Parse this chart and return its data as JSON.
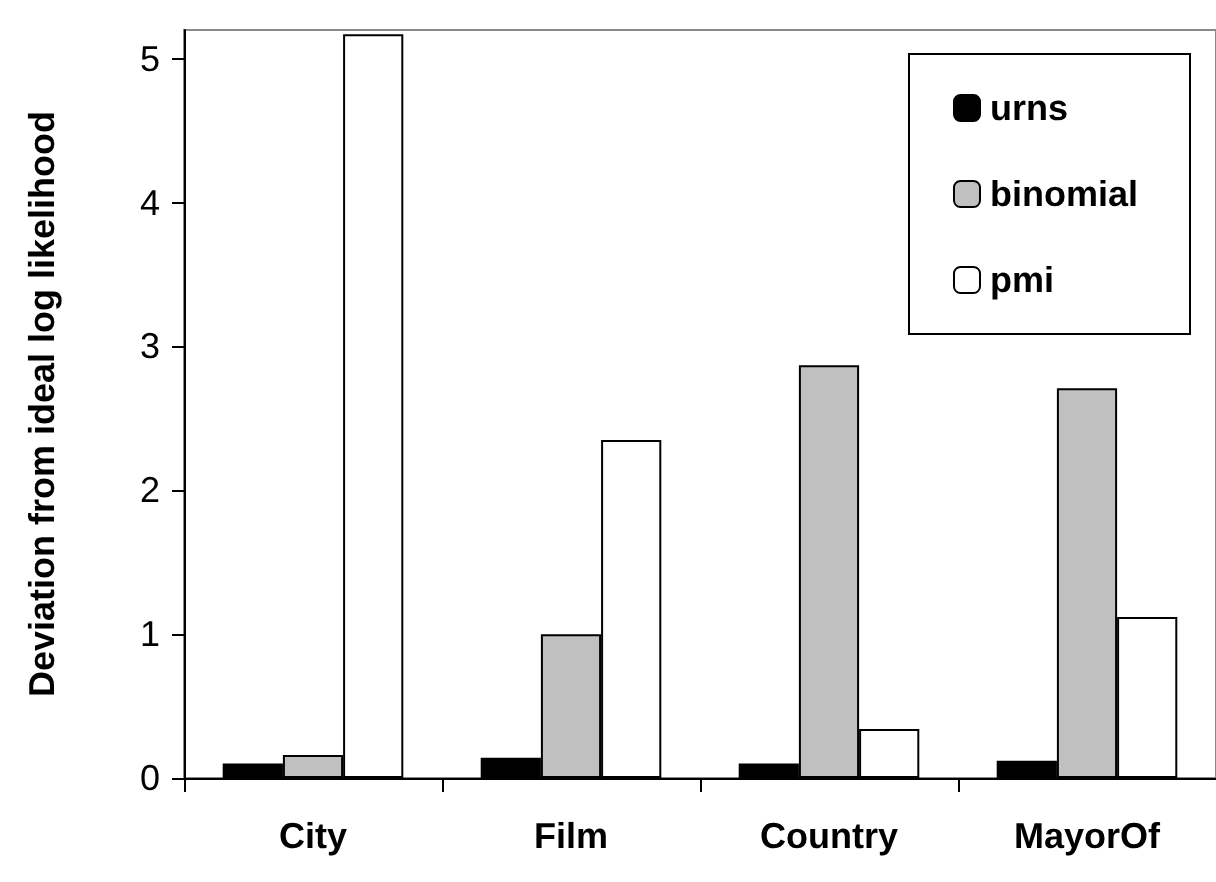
{
  "chart_data": {
    "type": "bar",
    "ylabel": "Deviation from ideal log likelihood",
    "categories": [
      "City",
      "Film",
      "Country",
      "MayorOf"
    ],
    "series": [
      {
        "name": "urns",
        "color": "#000000",
        "values": [
          0.1,
          0.14,
          0.1,
          0.12
        ]
      },
      {
        "name": "binomial",
        "color": "#c0c0c0",
        "values": [
          0.16,
          1.0,
          2.87,
          2.71
        ]
      },
      {
        "name": "pmi",
        "color": "#ffffff",
        "values": [
          5.17,
          2.35,
          0.34,
          1.12
        ]
      }
    ],
    "ylim": [
      0,
      5.2
    ],
    "yticks": [
      0,
      1,
      2,
      3,
      4,
      5
    ],
    "grid": false,
    "legend": "top right"
  }
}
